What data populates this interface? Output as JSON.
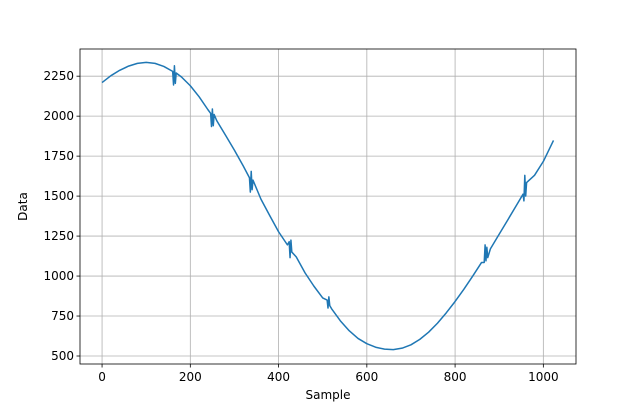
{
  "chart_data": {
    "type": "line",
    "title": "",
    "xlabel": "Sample",
    "ylabel": "Data",
    "xlim": [
      -50,
      1074
    ],
    "ylim": [
      450,
      2420
    ],
    "xticks": [
      0,
      200,
      400,
      600,
      800,
      1000
    ],
    "yticks": [
      500,
      750,
      1000,
      1250,
      1500,
      1750,
      2000,
      2250
    ],
    "grid": true,
    "legend": "none",
    "series": [
      {
        "color": "#1f77b4",
        "x": [
          0,
          20,
          40,
          60,
          80,
          100,
          120,
          140,
          160,
          162,
          164,
          166,
          168,
          180,
          200,
          220,
          240,
          246,
          248,
          250,
          252,
          254,
          260,
          280,
          300,
          320,
          334,
          336,
          338,
          340,
          342,
          360,
          380,
          400,
          420,
          424,
          426,
          428,
          430,
          440,
          460,
          480,
          500,
          510,
          512,
          514,
          516,
          520,
          540,
          560,
          580,
          600,
          620,
          640,
          660,
          680,
          700,
          720,
          740,
          760,
          780,
          800,
          820,
          840,
          860,
          866,
          868,
          870,
          872,
          874,
          880,
          900,
          920,
          940,
          954,
          956,
          958,
          960,
          962,
          980,
          1000,
          1023
        ],
        "y": [
          2210,
          2253,
          2287,
          2313,
          2330,
          2336,
          2330,
          2311,
          2280,
          2195,
          2315,
          2205,
          2270,
          2245,
          2190,
          2121,
          2040,
          2018,
          1935,
          2045,
          1940,
          2010,
          1971,
          1880,
          1787,
          1688,
          1615,
          1525,
          1655,
          1540,
          1600,
          1481,
          1378,
          1277,
          1195,
          1215,
          1115,
          1225,
          1150,
          1120,
          1020,
          937,
          863,
          850,
          800,
          870,
          815,
          796,
          720,
          658,
          610,
          577,
          555,
          543,
          540,
          549,
          570,
          604,
          649,
          705,
          770,
          841,
          918,
          1000,
          1085,
          1085,
          1195,
          1095,
          1180,
          1115,
          1170,
          1262,
          1354,
          1447,
          1512,
          1470,
          1630,
          1500,
          1585,
          1630,
          1717,
          1848
        ]
      }
    ]
  }
}
